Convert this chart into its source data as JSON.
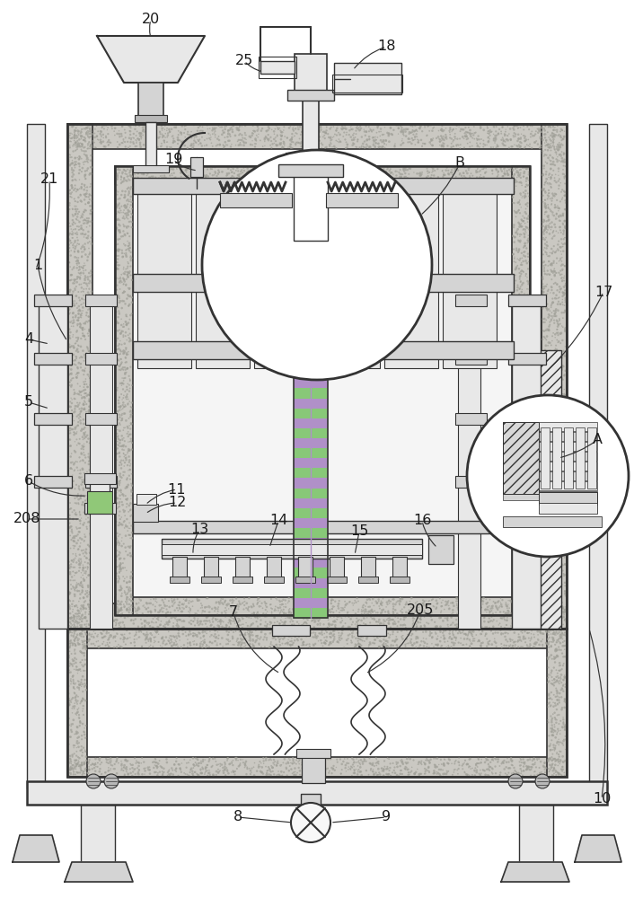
{
  "bg": "#ffffff",
  "lc": "#333333",
  "g1": "#d4d4d4",
  "g2": "#e8e8e8",
  "g3": "#b8b8b8",
  "g4": "#c8c8c8",
  "green": "#88c878",
  "purple": "#b090c8",
  "speckle_fc": "#d0cec8",
  "speckle_dot": "#a0a098"
}
